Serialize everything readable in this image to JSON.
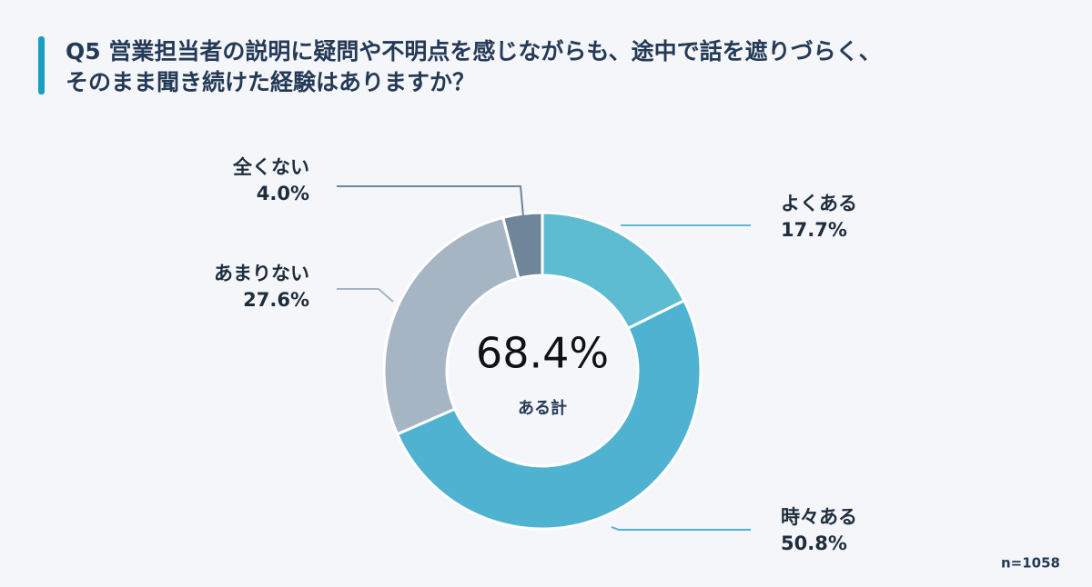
{
  "chart_data": {
    "type": "donut",
    "title": [
      "Q5 営業担当者の説明に疑問や不明点を感じながらも、途中で話を遮りづらく、",
      "そのまま聞き続けた経験はありますか？"
    ],
    "categories": [
      "よくある",
      "時々ある",
      "あまりない",
      "全くない"
    ],
    "values": [
      17.7,
      50.8,
      27.6,
      4.0
    ],
    "value_labels": [
      "17.7%",
      "50.8%",
      "27.6%",
      "4.0%"
    ],
    "colors": [
      "#5dbcd2",
      "#4fb2d0",
      "#a6b5c4",
      "#6f8599"
    ],
    "center_label": "68.4%",
    "center_caption": "ある計",
    "note": "n=1058"
  }
}
